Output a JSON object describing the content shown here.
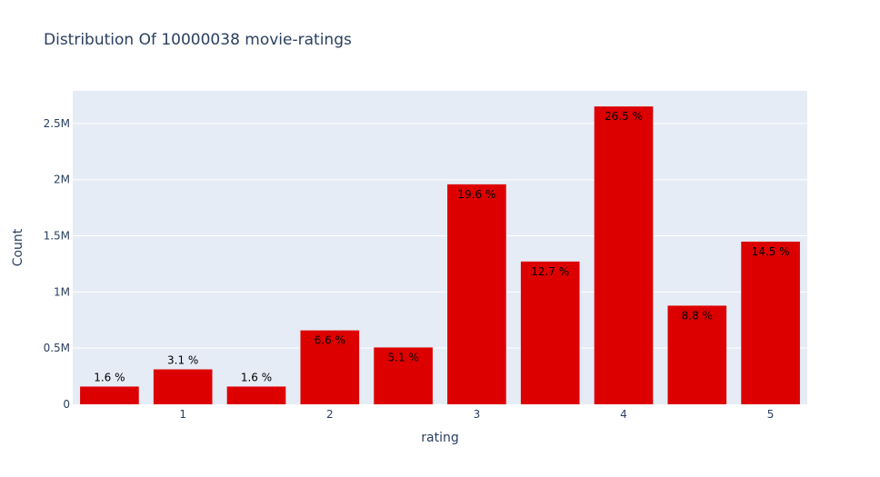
{
  "chart_data": {
    "type": "bar",
    "title": "Distribution Of 10000038 movie-ratings",
    "xlabel": "rating",
    "ylabel": "Count",
    "x": [
      0.5,
      1,
      1.5,
      2,
      2.5,
      3,
      3.5,
      4,
      4.5,
      5
    ],
    "values": [
      158000,
      311000,
      158000,
      658000,
      506000,
      1958000,
      1271000,
      2651000,
      878000,
      1448000
    ],
    "data_labels": [
      "1.6 %",
      "3.1 %",
      "1.6 %",
      "6.6 %",
      "5.1 %",
      "19.6 %",
      "12.7 %",
      "26.5 %",
      "8.8 %",
      "14.5 %"
    ],
    "x_ticks": [
      1,
      2,
      3,
      4,
      5
    ],
    "x_tick_labels": [
      "1",
      "2",
      "3",
      "4",
      "5"
    ],
    "y_ticks": [
      0,
      500000,
      1000000,
      1500000,
      2000000,
      2500000
    ],
    "y_tick_labels": [
      "0",
      "0.5M",
      "1M",
      "1.5M",
      "2M",
      "2.5M"
    ],
    "xlim": [
      0.25,
      5.25
    ],
    "ylim": [
      0,
      2790000
    ],
    "grid": true,
    "legend": "none",
    "colors": {
      "bar": "#dc0000",
      "plot_bg": "#e5ecf6",
      "grid": "#ffffff",
      "text": "#2a3f5f"
    }
  }
}
